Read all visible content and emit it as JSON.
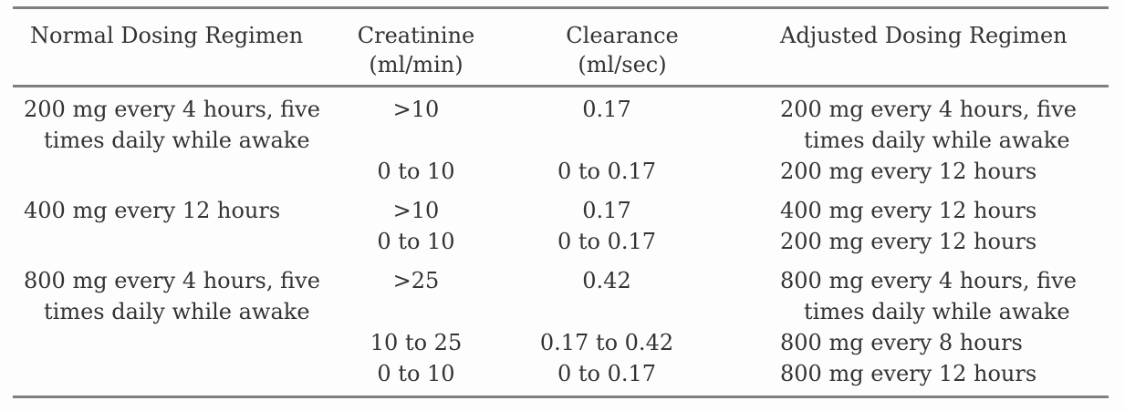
{
  "page": {
    "background": "#fdfdfd",
    "rule_color": "#7f7f7f",
    "text_color": "#333333"
  },
  "table": {
    "columns": [
      {
        "id": "normal",
        "label": "Normal Dosing Regimen"
      },
      {
        "id": "creatinine",
        "label": "Creatinine\n(ml/min)"
      },
      {
        "id": "clearance",
        "label": "Clearance\n(ml/sec)"
      },
      {
        "id": "adjusted",
        "label": "Adjusted Dosing Regimen"
      }
    ],
    "rows": [
      {
        "normal": "200 mg every 4 hours, five\ntimes daily while awake",
        "creatinine": ">10",
        "clearance": "0.17",
        "adjusted": "200 mg every 4 hours, five\ntimes daily while awake"
      },
      {
        "normal": "",
        "creatinine": "0 to 10",
        "clearance": "0 to 0.17",
        "adjusted": "200 mg every 12 hours"
      },
      {
        "normal": "400 mg every 12 hours",
        "creatinine": ">10",
        "clearance": "0.17",
        "adjusted": "400 mg every 12 hours"
      },
      {
        "normal": "",
        "creatinine": "0 to 10",
        "clearance": "0 to 0.17",
        "adjusted": "200 mg every 12 hours"
      },
      {
        "normal": "800 mg every 4 hours, five\ntimes daily while awake",
        "creatinine": ">25",
        "clearance": "0.42",
        "adjusted": "800 mg every 4 hours, five\ntimes daily while awake"
      },
      {
        "normal": "",
        "creatinine": "10 to 25",
        "clearance": "0.17 to 0.42",
        "adjusted": "800 mg every 8 hours"
      },
      {
        "normal": "",
        "creatinine": "0 to 10",
        "clearance": "0 to 0.17",
        "adjusted": "800 mg every 12 hours"
      }
    ]
  }
}
